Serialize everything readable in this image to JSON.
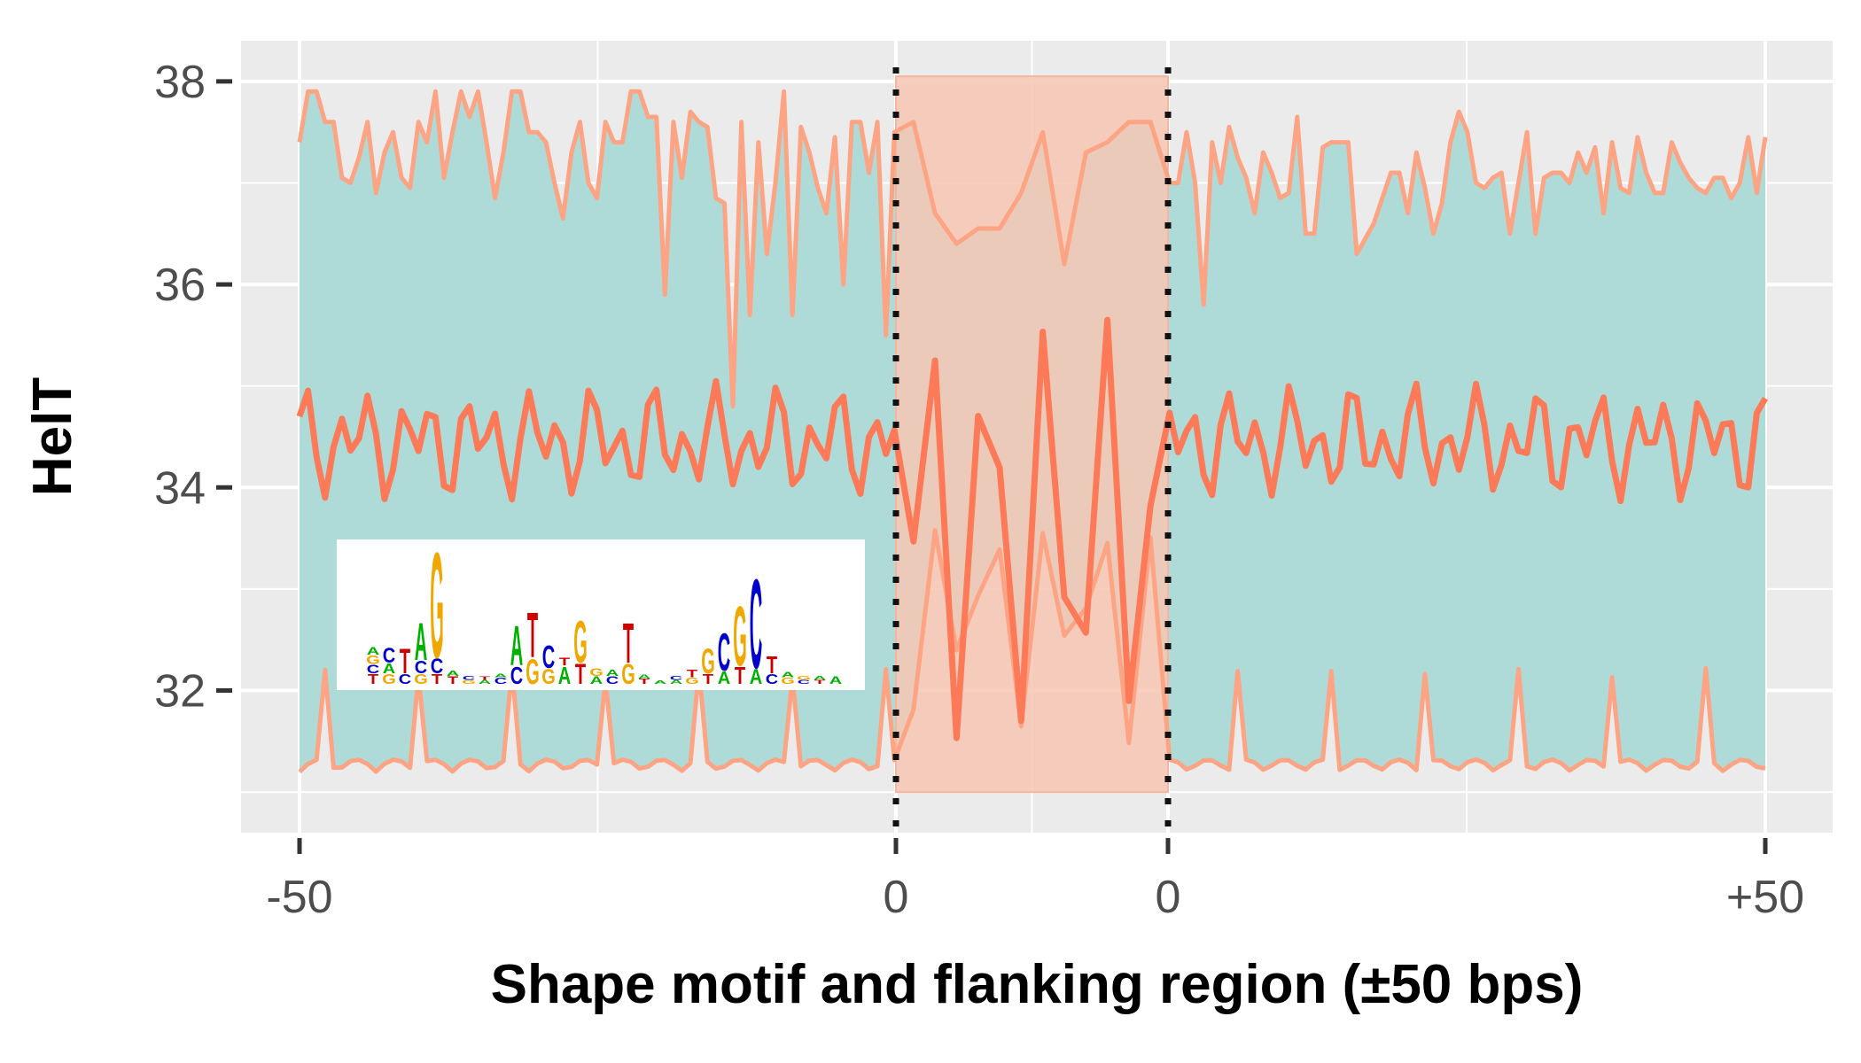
{
  "chart_data": {
    "type": "area",
    "title": "",
    "xlabel": "Shape motif and flanking region (±50 bps)",
    "ylabel": "HelT",
    "ylim": [
      30.6,
      38.4
    ],
    "yticks": [
      32,
      34,
      36,
      38
    ],
    "xtick_labels": [
      "-50",
      "0",
      "0",
      "+50"
    ],
    "grid": true,
    "legend": "none",
    "colors": {
      "panel": "#ebebeb",
      "grid": "#ffffff",
      "ribbon": "#aedbd8",
      "motif_band": "#f7c7b4",
      "mean_line": "#fc8662",
      "bound_lines": "#fca484",
      "axis_text": "#4d4d4d",
      "logo_A": "#00b000",
      "logo_C": "#0000cc",
      "logo_G": "#f0a800",
      "logo_T": "#cc0000"
    },
    "regions": [
      {
        "name": "upstream-flank",
        "x": [
          -50,
          0
        ]
      },
      {
        "name": "shape-motif",
        "x": [
          0,
          9
        ]
      },
      {
        "name": "downstream-flank",
        "x": [
          9,
          59
        ]
      }
    ],
    "motif_band_y": [
      31.0,
      38.05
    ],
    "series": [
      {
        "values": [
          37.4,
          37.9,
          37.9,
          37.6,
          37.6,
          37.05,
          37.0,
          37.25,
          37.6,
          36.9,
          37.3,
          37.5,
          37.05,
          36.95,
          37.6,
          37.4,
          37.9,
          37.05,
          37.5,
          37.9,
          37.65,
          37.9,
          37.4,
          36.85,
          37.3,
          37.9,
          37.9,
          37.5,
          37.5,
          37.4,
          37.0,
          36.65,
          37.3,
          37.6,
          37.0,
          36.85,
          37.6,
          37.4,
          37.4,
          37.9,
          37.9,
          37.65,
          37.65,
          35.9,
          37.6,
          37.05,
          37.7,
          37.6,
          37.55,
          36.85,
          36.8,
          34.8,
          37.6,
          35.7,
          37.4,
          36.3,
          37.0,
          37.9,
          35.7,
          37.55,
          37.3,
          36.95,
          36.7,
          37.45,
          36.0,
          37.6,
          37.6,
          37.1,
          37.6,
          35.5,
          37.5,
          37.6,
          36.7,
          36.4,
          36.55,
          36.55,
          36.9,
          37.5,
          36.2,
          37.3,
          37.4,
          37.6,
          37.6,
          37.0,
          37.0,
          37.5,
          37.0,
          35.8,
          37.4,
          37.0,
          37.55,
          37.25,
          37.05,
          36.7,
          37.3,
          37.1,
          36.85,
          36.9,
          37.65,
          36.5,
          36.5,
          37.35,
          37.4,
          37.4,
          37.4,
          36.3,
          36.45,
          36.6,
          36.85,
          37.1,
          37.1,
          36.7,
          37.3,
          36.95,
          36.5,
          36.8,
          37.4,
          37.7,
          37.5,
          37.0,
          36.95,
          37.05,
          37.1,
          36.5,
          37.0,
          37.5,
          36.5,
          37.05,
          37.1,
          37.1,
          37.0,
          37.3,
          37.1,
          37.35,
          36.7,
          37.4,
          36.95,
          36.9,
          37.45,
          37.1,
          36.9,
          36.9,
          37.4,
          37.2,
          37.05,
          36.95,
          36.9,
          37.05,
          37.05,
          36.85,
          37.0,
          37.45,
          36.9,
          37.45
        ]
      }
    ]
  },
  "logo": {
    "letters": [
      {
        "pos": 1,
        "stack": [
          [
            "T",
            0.08
          ],
          [
            "C",
            0.07
          ],
          [
            "G",
            0.07
          ],
          [
            "A",
            0.06
          ]
        ]
      },
      {
        "pos": 2,
        "stack": [
          [
            "G",
            0.08
          ],
          [
            "A",
            0.08
          ],
          [
            "C",
            0.12
          ]
        ]
      },
      {
        "pos": 3,
        "stack": [
          [
            "C",
            0.08
          ],
          [
            "T",
            0.2
          ]
        ]
      },
      {
        "pos": 4,
        "stack": [
          [
            "G",
            0.08
          ],
          [
            "C",
            0.1
          ],
          [
            "A",
            0.3
          ]
        ]
      },
      {
        "pos": 5,
        "stack": [
          [
            "T",
            0.08
          ],
          [
            "C",
            0.12
          ],
          [
            "G",
            0.85
          ]
        ]
      },
      {
        "pos": 6,
        "stack": [
          [
            "T",
            0.06
          ],
          [
            "A",
            0.04
          ]
        ]
      },
      {
        "pos": 7,
        "stack": [
          [
            "G",
            0.03
          ],
          [
            "C",
            0.03
          ]
        ]
      },
      {
        "pos": 8,
        "stack": [
          [
            "A",
            0.03
          ],
          [
            "T",
            0.02
          ]
        ]
      },
      {
        "pos": 9,
        "stack": [
          [
            "C",
            0.05
          ],
          [
            "A",
            0.02
          ]
        ]
      },
      {
        "pos": 10,
        "stack": [
          [
            "C",
            0.14
          ],
          [
            "A",
            0.32
          ]
        ]
      },
      {
        "pos": 11,
        "stack": [
          [
            "G",
            0.2
          ],
          [
            "T",
            0.36
          ]
        ]
      },
      {
        "pos": 12,
        "stack": [
          [
            "G",
            0.12
          ],
          [
            "C",
            0.18
          ]
        ]
      },
      {
        "pos": 13,
        "stack": [
          [
            "A",
            0.14
          ],
          [
            "T",
            0.06
          ]
        ]
      },
      {
        "pos": 14,
        "stack": [
          [
            "T",
            0.16
          ],
          [
            "G",
            0.34
          ]
        ]
      },
      {
        "pos": 15,
        "stack": [
          [
            "A",
            0.06
          ],
          [
            "G",
            0.06
          ]
        ]
      },
      {
        "pos": 16,
        "stack": [
          [
            "C",
            0.06
          ],
          [
            "A",
            0.05
          ]
        ]
      },
      {
        "pos": 17,
        "stack": [
          [
            "G",
            0.16
          ],
          [
            "T",
            0.32
          ]
        ]
      },
      {
        "pos": 18,
        "stack": [
          [
            "T",
            0.04
          ],
          [
            "A",
            0.03
          ]
        ]
      },
      {
        "pos": 19,
        "stack": [
          [
            "A",
            0.02
          ]
        ]
      },
      {
        "pos": 20,
        "stack": [
          [
            "A",
            0.03
          ],
          [
            "C",
            0.03
          ]
        ]
      },
      {
        "pos": 21,
        "stack": [
          [
            "G",
            0.05
          ],
          [
            "T",
            0.06
          ]
        ]
      },
      {
        "pos": 22,
        "stack": [
          [
            "T",
            0.08
          ],
          [
            "G",
            0.2
          ]
        ]
      },
      {
        "pos": 23,
        "stack": [
          [
            "A",
            0.1
          ],
          [
            "C",
            0.3
          ]
        ]
      },
      {
        "pos": 24,
        "stack": [
          [
            "T",
            0.14
          ],
          [
            "G",
            0.48
          ]
        ]
      },
      {
        "pos": 25,
        "stack": [
          [
            "A",
            0.12
          ],
          [
            "C",
            0.72
          ]
        ]
      },
      {
        "pos": 26,
        "stack": [
          [
            "C",
            0.08
          ],
          [
            "T",
            0.14
          ]
        ]
      },
      {
        "pos": 27,
        "stack": [
          [
            "G",
            0.05
          ],
          [
            "A",
            0.04
          ]
        ]
      },
      {
        "pos": 28,
        "stack": [
          [
            "C",
            0.03
          ],
          [
            "G",
            0.03
          ]
        ]
      },
      {
        "pos": 29,
        "stack": [
          [
            "T",
            0.03
          ],
          [
            "A",
            0.03
          ]
        ]
      },
      {
        "pos": 30,
        "stack": [
          [
            "A",
            0.06
          ]
        ]
      }
    ]
  }
}
